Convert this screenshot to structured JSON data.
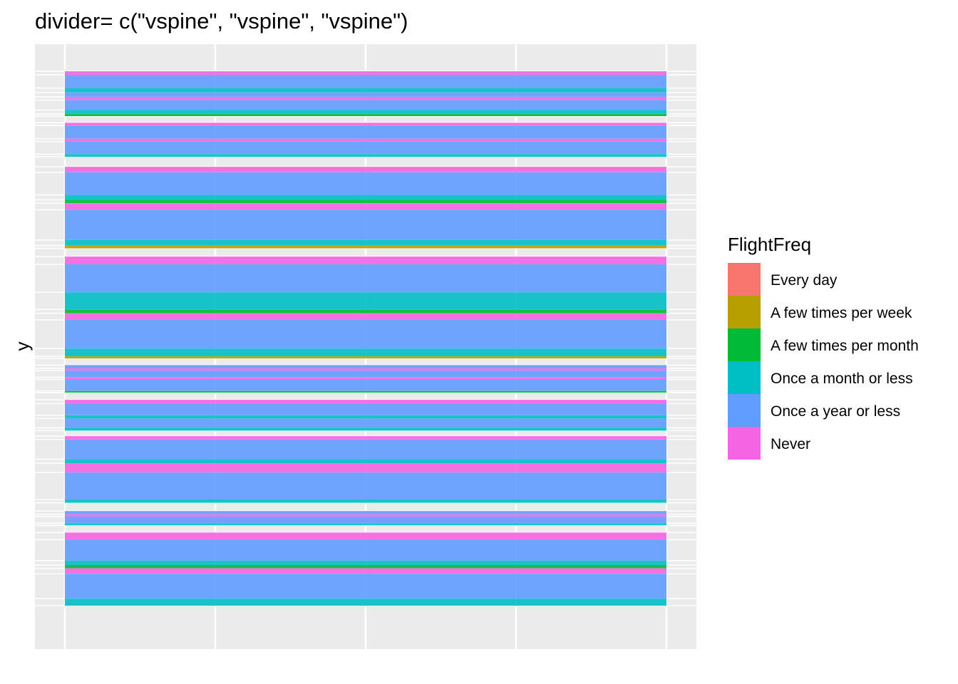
{
  "chart_data": {
    "type": "bar",
    "title": "divider= c(\"vspine\", \"vspine\", \"vspine\")",
    "xlabel": "",
    "ylabel": "y",
    "grid": true,
    "legend_position": "right",
    "legend": {
      "title": "FlightFreq",
      "entries": [
        {
          "label": "Every day",
          "color": "#F8766D"
        },
        {
          "label": "A few times per week",
          "color": "#B79F00"
        },
        {
          "label": "A few times per month",
          "color": "#00BA38"
        },
        {
          "label": "Once a month or less",
          "color": "#00BFC4"
        },
        {
          "label": "Once a year or less",
          "color": "#619CFF"
        },
        {
          "label": "Never",
          "color": "#F564E3"
        }
      ]
    },
    "ylim": [
      0,
      1
    ],
    "stacked_segments": [
      {
        "category": "Never",
        "y0": 0.0,
        "y1": 0.0065
      },
      {
        "category": "Once a year or less",
        "y0": 0.0065,
        "y1": 0.0305
      },
      {
        "category": "Once a month or less",
        "y0": 0.0305,
        "y1": 0.0385
      },
      {
        "category": "Once a year or less",
        "y0": 0.0385,
        "y1": 0.0465
      },
      {
        "category": "Never",
        "y0": 0.0465,
        "y1": 0.0525
      },
      {
        "category": "Once a year or less",
        "y0": 0.0525,
        "y1": 0.0705
      },
      {
        "category": "Once a month or less",
        "y0": 0.0705,
        "y1": 0.0775
      },
      {
        "category": "A few times per month",
        "y0": 0.0775,
        "y1": 0.0815
      },
      {
        "category": "Never",
        "y0": 0.0935,
        "y1": 0.0985
      },
      {
        "category": "Once a year or less",
        "y0": 0.0985,
        "y1": 0.1225
      },
      {
        "category": "Never",
        "y0": 0.1225,
        "y1": 0.1275
      },
      {
        "category": "Once a year or less",
        "y0": 0.1275,
        "y1": 0.1505
      },
      {
        "category": "Once a month or less",
        "y0": 0.1505,
        "y1": 0.1555
      },
      {
        "category": "Never",
        "y0": 0.1735,
        "y1": 0.1835
      },
      {
        "category": "Once a year or less",
        "y0": 0.1835,
        "y1": 0.2245
      },
      {
        "category": "Once a month or less",
        "y0": 0.2245,
        "y1": 0.2335
      },
      {
        "category": "A few times per month",
        "y0": 0.2335,
        "y1": 0.2395
      },
      {
        "category": "Never",
        "y0": 0.2395,
        "y1": 0.2515
      },
      {
        "category": "Once a year or less",
        "y0": 0.2515,
        "y1": 0.3065
      },
      {
        "category": "Once a month or less",
        "y0": 0.3065,
        "y1": 0.3165
      },
      {
        "category": "A few times per week",
        "y0": 0.3165,
        "y1": 0.3215
      },
      {
        "category": "Never",
        "y0": 0.3365,
        "y1": 0.3505
      },
      {
        "category": "Once a year or less",
        "y0": 0.3505,
        "y1": 0.4015
      },
      {
        "category": "Once a month or less",
        "y0": 0.4015,
        "y1": 0.4325
      },
      {
        "category": "A few times per month",
        "y0": 0.4325,
        "y1": 0.4395
      },
      {
        "category": "Never",
        "y0": 0.4395,
        "y1": 0.4515
      },
      {
        "category": "Once a year or less",
        "y0": 0.4515,
        "y1": 0.5035
      },
      {
        "category": "Once a month or less",
        "y0": 0.5035,
        "y1": 0.5175
      },
      {
        "category": "A few times per week",
        "y0": 0.5175,
        "y1": 0.5215
      },
      {
        "category": "Once a year or less",
        "y0": 0.5335,
        "y1": 0.5395
      },
      {
        "category": "Never",
        "y0": 0.5395,
        "y1": 0.5435
      },
      {
        "category": "Once a year or less",
        "y0": 0.5435,
        "y1": 0.5555
      },
      {
        "category": "Never",
        "y0": 0.5555,
        "y1": 0.5595
      },
      {
        "category": "Once a year or less",
        "y0": 0.5595,
        "y1": 0.5805
      },
      {
        "category": "A few times per month",
        "y0": 0.5805,
        "y1": 0.5835
      },
      {
        "category": "Never",
        "y0": 0.5965,
        "y1": 0.6035
      },
      {
        "category": "Once a year or less",
        "y0": 0.6035,
        "y1": 0.6245
      },
      {
        "category": "Once a month or less",
        "y0": 0.6245,
        "y1": 0.6305
      },
      {
        "category": "Once a year or less",
        "y0": 0.6305,
        "y1": 0.6475
      },
      {
        "category": "Once a month or less",
        "y0": 0.6475,
        "y1": 0.6525
      },
      {
        "category": "Never",
        "y0": 0.6625,
        "y1": 0.6685
      },
      {
        "category": "Once a year or less",
        "y0": 0.6685,
        "y1": 0.7045
      },
      {
        "category": "Once a month or less",
        "y0": 0.7045,
        "y1": 0.7115
      },
      {
        "category": "Never",
        "y0": 0.7115,
        "y1": 0.7285
      },
      {
        "category": "Once a year or less",
        "y0": 0.7285,
        "y1": 0.7775
      },
      {
        "category": "Once a month or less",
        "y0": 0.7775,
        "y1": 0.7835
      },
      {
        "category": "Once a year or less",
        "y0": 0.7985,
        "y1": 0.8045
      },
      {
        "category": "Never",
        "y0": 0.8045,
        "y1": 0.8085
      },
      {
        "category": "Once a year or less",
        "y0": 0.8085,
        "y1": 0.8205
      },
      {
        "category": "Once a month or less",
        "y0": 0.8205,
        "y1": 0.8245
      },
      {
        "category": "Never",
        "y0": 0.8375,
        "y1": 0.8505
      },
      {
        "category": "Once a year or less",
        "y0": 0.8505,
        "y1": 0.8885
      },
      {
        "category": "Once a month or less",
        "y0": 0.8885,
        "y1": 0.8965
      },
      {
        "category": "A few times per month",
        "y0": 0.8965,
        "y1": 0.9025
      },
      {
        "category": "Never",
        "y0": 0.9025,
        "y1": 0.9125
      },
      {
        "category": "Once a year or less",
        "y0": 0.9125,
        "y1": 0.9575
      },
      {
        "category": "Once a month or less",
        "y0": 0.9575,
        "y1": 0.9705
      }
    ]
  }
}
